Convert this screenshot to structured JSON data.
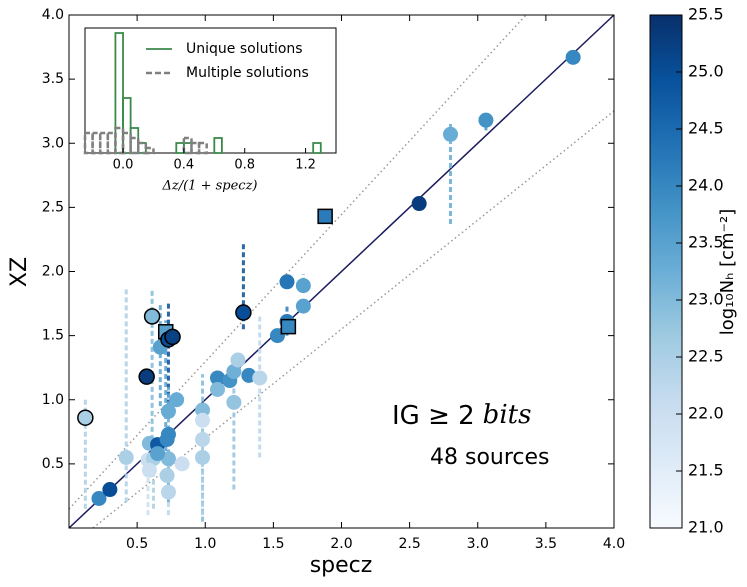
{
  "chart_data": [
    {
      "type": "scatter",
      "xlabel": "specz",
      "ylabel": "XZ",
      "xlim": [
        0,
        4
      ],
      "ylim": [
        0,
        4
      ],
      "xticks": [
        0.5,
        {
          "value": 1,
          "label": "1.0"
        },
        1.5,
        {
          "value": 2,
          "label": "2.0"
        },
        2.5,
        {
          "value": 3,
          "label": "3.0"
        },
        3.5,
        {
          "value": 4,
          "label": "4.0"
        }
      ],
      "yticks": [
        0.5,
        {
          "value": 1,
          "label": "1.0"
        },
        1.5,
        {
          "value": 2,
          "label": "2.0"
        },
        2.5,
        {
          "value": 3,
          "label": "3.0"
        },
        3.5,
        {
          "value": 4,
          "label": "4.0"
        }
      ],
      "colormap_colors": [
        "#f7fbff",
        "#deebf7",
        "#c6dbef",
        "#9ecae1",
        "#6baed6",
        "#4292c6",
        "#2171b5",
        "#08519c",
        "#08306b"
      ],
      "clim": [
        21,
        25.5
      ],
      "cticks": [
        {
          "value": 21,
          "label": "21.0"
        },
        21.5,
        {
          "value": 22,
          "label": "22.0"
        },
        22.5,
        {
          "value": 23,
          "label": "23.0"
        },
        23.5,
        {
          "value": 24,
          "label": "24.0"
        },
        24.5,
        {
          "value": 25,
          "label": "25.0"
        },
        25.5
      ],
      "colorbar_label": "log₁₀Nₕ [cm⁻²]",
      "annotation": {
        "text": "IG ≥ 2",
        "math": "bits",
        "count": "48 sources"
      },
      "series": [
        {
          "x": [
            0.12,
            0.22,
            0.3,
            0.42,
            0.57,
            0.61,
            0.59,
            0.58,
            0.62,
            0.67,
            0.65,
            0.71,
            0.73,
            0.76,
            0.72,
            0.73,
            0.73,
            0.73,
            0.73,
            0.79,
            0.83,
            0.98,
            0.98,
            0.98,
            1.09,
            1.09,
            1.18,
            1.21,
            1.21,
            1.28,
            1.32,
            1.4,
            1.53,
            1.6,
            1.61,
            1.6,
            1.72,
            1.72,
            1.88,
            2.57,
            2.8,
            3.06,
            3.7,
            0.65,
            0.98,
            0.59,
            0.72,
            1.24
          ],
          "y": [
            0.86,
            0.23,
            0.3,
            0.55,
            1.18,
            1.65,
            0.66,
            0.53,
            0.54,
            1.41,
            0.65,
            1.53,
            1.47,
            1.49,
            0.69,
            0.73,
            0.91,
            0.54,
            0.28,
            1.0,
            0.5,
            0.92,
            0.55,
            0.84,
            1.17,
            1.08,
            1.15,
            1.22,
            0.98,
            1.68,
            1.19,
            1.17,
            1.5,
            1.61,
            1.57,
            1.92,
            1.89,
            1.73,
            2.43,
            2.53,
            3.07,
            3.18,
            3.67,
            0.58,
            0.69,
            0.45,
            0.41,
            1.31
          ],
          "nh": [
            22.5,
            24.0,
            25.0,
            22.5,
            25.3,
            23.0,
            23.0,
            22.0,
            22.5,
            23.5,
            24.8,
            23.5,
            25.0,
            25.2,
            24.0,
            24.0,
            23.3,
            23.0,
            22.3,
            23.3,
            22.0,
            23.0,
            22.5,
            22.0,
            24.0,
            23.0,
            23.8,
            23.2,
            22.8,
            25.0,
            24.0,
            22.3,
            24.0,
            24.2,
            24.0,
            24.3,
            23.5,
            23.5,
            24.2,
            25.3,
            23.3,
            23.8,
            24.0,
            23.5,
            22.3,
            22.0,
            22.5,
            22.5
          ],
          "marker": [
            "O",
            "o",
            "o",
            "o",
            "O",
            "O",
            "o",
            "o",
            "o",
            "o",
            "o",
            "s",
            "O",
            "O",
            "o",
            "o",
            "o",
            "o",
            "o",
            "o",
            "o",
            "o",
            "o",
            "o",
            "o",
            "o",
            "o",
            "o",
            "o",
            "O",
            "o",
            "o",
            "o",
            "o",
            "s",
            "o",
            "o",
            "o",
            "s",
            "o",
            "o",
            "o",
            "o",
            "o",
            "o",
            "o",
            "o",
            "o"
          ],
          "y_low": [
            0.15,
            null,
            null,
            0.2,
            null,
            0.5,
            null,
            0.1,
            0.15,
            0.95,
            null,
            0.6,
            0.9,
            null,
            null,
            null,
            0.2,
            null,
            0.1,
            null,
            null,
            0.05,
            0.1,
            null,
            null,
            null,
            null,
            null,
            0.3,
            1.55,
            null,
            0.55,
            null,
            1.5,
            null,
            null,
            1.85,
            null,
            null,
            null,
            2.37,
            3.1,
            null,
            null,
            null,
            null,
            null,
            null
          ],
          "y_high": [
            1.0,
            null,
            null,
            1.87,
            null,
            1.87,
            null,
            0.6,
            0.6,
            1.75,
            null,
            1.62,
            1.75,
            null,
            null,
            null,
            1.1,
            null,
            0.5,
            null,
            null,
            1.2,
            0.8,
            null,
            null,
            null,
            null,
            null,
            1.15,
            2.22,
            null,
            1.65,
            null,
            1.75,
            null,
            null,
            1.98,
            null,
            null,
            null,
            3.15,
            3.22,
            null,
            null,
            null,
            null,
            null,
            null
          ]
        }
      ]
    },
    {
      "type": "histogram",
      "xlabel": "Δz/(1 + specz)",
      "xlim": [
        -0.25,
        1.4
      ],
      "ylim": [
        0,
        25
      ],
      "xticks": [
        {
          "value": 0,
          "label": "0.0"
        },
        0.4,
        0.8,
        1.2
      ],
      "bins": [
        -0.25,
        -0.2,
        -0.15,
        -0.1,
        -0.05,
        0,
        0.05,
        0.1,
        0.15,
        0.2,
        0.25,
        0.3,
        0.35,
        0.4,
        0.45,
        0.5,
        0.55,
        0.6,
        0.65,
        0.7,
        0.75,
        0.8,
        0.85,
        0.9,
        0.95,
        1.0,
        1.05,
        1.1,
        1.15,
        1.2,
        1.25,
        1.3
      ],
      "legend": "upper right",
      "series": [
        {
          "name": "Unique solutions",
          "color": "#3a8a4a",
          "dash": false,
          "values": [
            0,
            0,
            0,
            0,
            24,
            11,
            5,
            2,
            0,
            0,
            0,
            0,
            2,
            2,
            0,
            0,
            0,
            3,
            0,
            0,
            0,
            0,
            0,
            0,
            0,
            0,
            0,
            0,
            0,
            0,
            2
          ]
        },
        {
          "name": "Multiple solutions",
          "color": "#808080",
          "dash": true,
          "values": [
            4,
            4,
            4,
            4,
            5,
            4,
            3,
            2,
            1,
            0,
            0,
            0,
            0,
            3,
            2,
            2,
            0,
            0,
            0,
            0,
            0,
            0,
            0,
            0,
            0,
            0,
            0,
            0,
            0,
            0,
            0
          ]
        }
      ]
    }
  ]
}
